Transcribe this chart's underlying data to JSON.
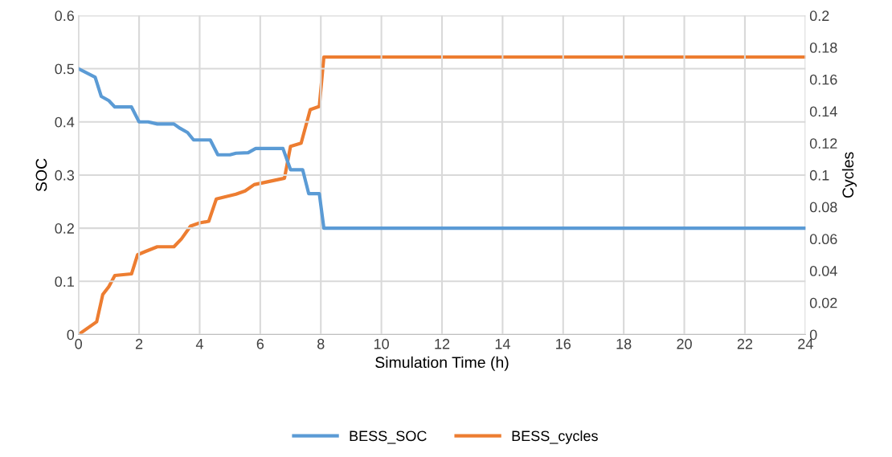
{
  "chart_data": {
    "type": "line",
    "xlabel": "Simulation Time (h)",
    "ylabel": "SOC",
    "y2label": "Cycles",
    "xlim": [
      0,
      24
    ],
    "xticks": [
      0,
      2,
      4,
      6,
      8,
      10,
      12,
      14,
      16,
      18,
      20,
      22,
      24
    ],
    "ylim": [
      0,
      0.6
    ],
    "yticks": [
      0,
      0.1,
      0.2,
      0.3,
      0.4,
      0.5,
      0.6
    ],
    "y2lim": [
      0,
      0.2
    ],
    "y2ticks": [
      0,
      0.02,
      0.04,
      0.06,
      0.08,
      0.1,
      0.12,
      0.14,
      0.16,
      0.18,
      0.2
    ],
    "grid": true,
    "legend": "bottom",
    "marker": "none",
    "line_style": "solid",
    "series": [
      {
        "name": "BESS_SOC",
        "color": "#5b9bd5",
        "x": [
          0,
          0.55,
          0.75,
          1.0,
          1.2,
          1.75,
          2.0,
          2.3,
          2.6,
          3.15,
          3.35,
          3.6,
          3.8,
          4.35,
          4.6,
          5.0,
          5.2,
          5.6,
          5.85,
          6.75,
          7.0,
          7.4,
          7.6,
          7.95,
          8.1,
          24
        ],
        "values": [
          0.5,
          0.484,
          0.448,
          0.44,
          0.428,
          0.428,
          0.4,
          0.4,
          0.396,
          0.396,
          0.388,
          0.38,
          0.366,
          0.366,
          0.338,
          0.338,
          0.341,
          0.342,
          0.35,
          0.35,
          0.31,
          0.31,
          0.265,
          0.265,
          0.2,
          0.2
        ]
      },
      {
        "name": "BESS_cycles",
        "color": "#ed7d31",
        "axis": "y2",
        "x": [
          0,
          0.6,
          0.8,
          1.0,
          1.2,
          1.75,
          1.95,
          2.2,
          2.6,
          3.15,
          3.4,
          3.7,
          4.0,
          4.3,
          4.55,
          5.2,
          5.5,
          5.8,
          6.8,
          7.0,
          7.35,
          7.65,
          7.95,
          8.1,
          24
        ],
        "values": [
          0,
          0.008,
          0.025,
          0.03,
          0.037,
          0.038,
          0.05,
          0.052,
          0.055,
          0.055,
          0.06,
          0.068,
          0.07,
          0.071,
          0.085,
          0.088,
          0.09,
          0.094,
          0.098,
          0.118,
          0.12,
          0.141,
          0.143,
          0.174,
          0.174
        ]
      }
    ]
  }
}
